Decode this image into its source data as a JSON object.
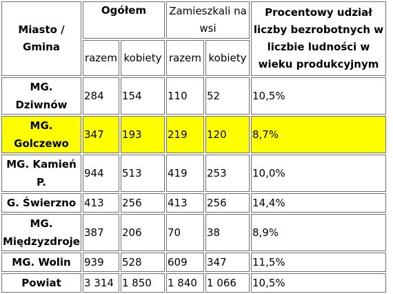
{
  "table": {
    "header": {
      "city": "Miasto / Gmina",
      "total": "Ogółem",
      "rural": "Zamieszkali na wsi",
      "percent": "Procentowy udział liczby bezrobotnych w liczbie ludności w wieku produkcyjnym",
      "sub_total": "razem",
      "sub_women": "kobiety"
    },
    "rows": [
      {
        "name": "MG. Dziwnów",
        "total": "284",
        "women": "154",
        "rural_total": "110",
        "rural_women": "52",
        "percent": "10,5%"
      },
      {
        "name": "MG. Golczewo",
        "total": "347",
        "women": "193",
        "rural_total": "219",
        "rural_women": "120",
        "percent": "8,7%",
        "highlight": true
      },
      {
        "name": "MG. Kamień P.",
        "total": "944",
        "women": "513",
        "rural_total": "419",
        "rural_women": "253",
        "percent": "10,0%"
      },
      {
        "name": "G. Świerzno",
        "total": "413",
        "women": "256",
        "rural_total": "413",
        "rural_women": "256",
        "percent": "14,4%"
      },
      {
        "name": "MG. Międzyzdroje",
        "total": "387",
        "women": "206",
        "rural_total": "70",
        "rural_women": "38",
        "percent": "8,9%"
      },
      {
        "name": "MG. Wolin",
        "total": "939",
        "women": "528",
        "rural_total": "609",
        "rural_women": "347",
        "percent": "11,5%"
      },
      {
        "name": "Powiat",
        "total": "3 314",
        "women": "1 850",
        "rural_total": "1 840",
        "rural_women": "1 066",
        "percent": "10,5%"
      }
    ],
    "colors": {
      "highlight": "#ffff00",
      "border": "#6e6e6e"
    }
  }
}
